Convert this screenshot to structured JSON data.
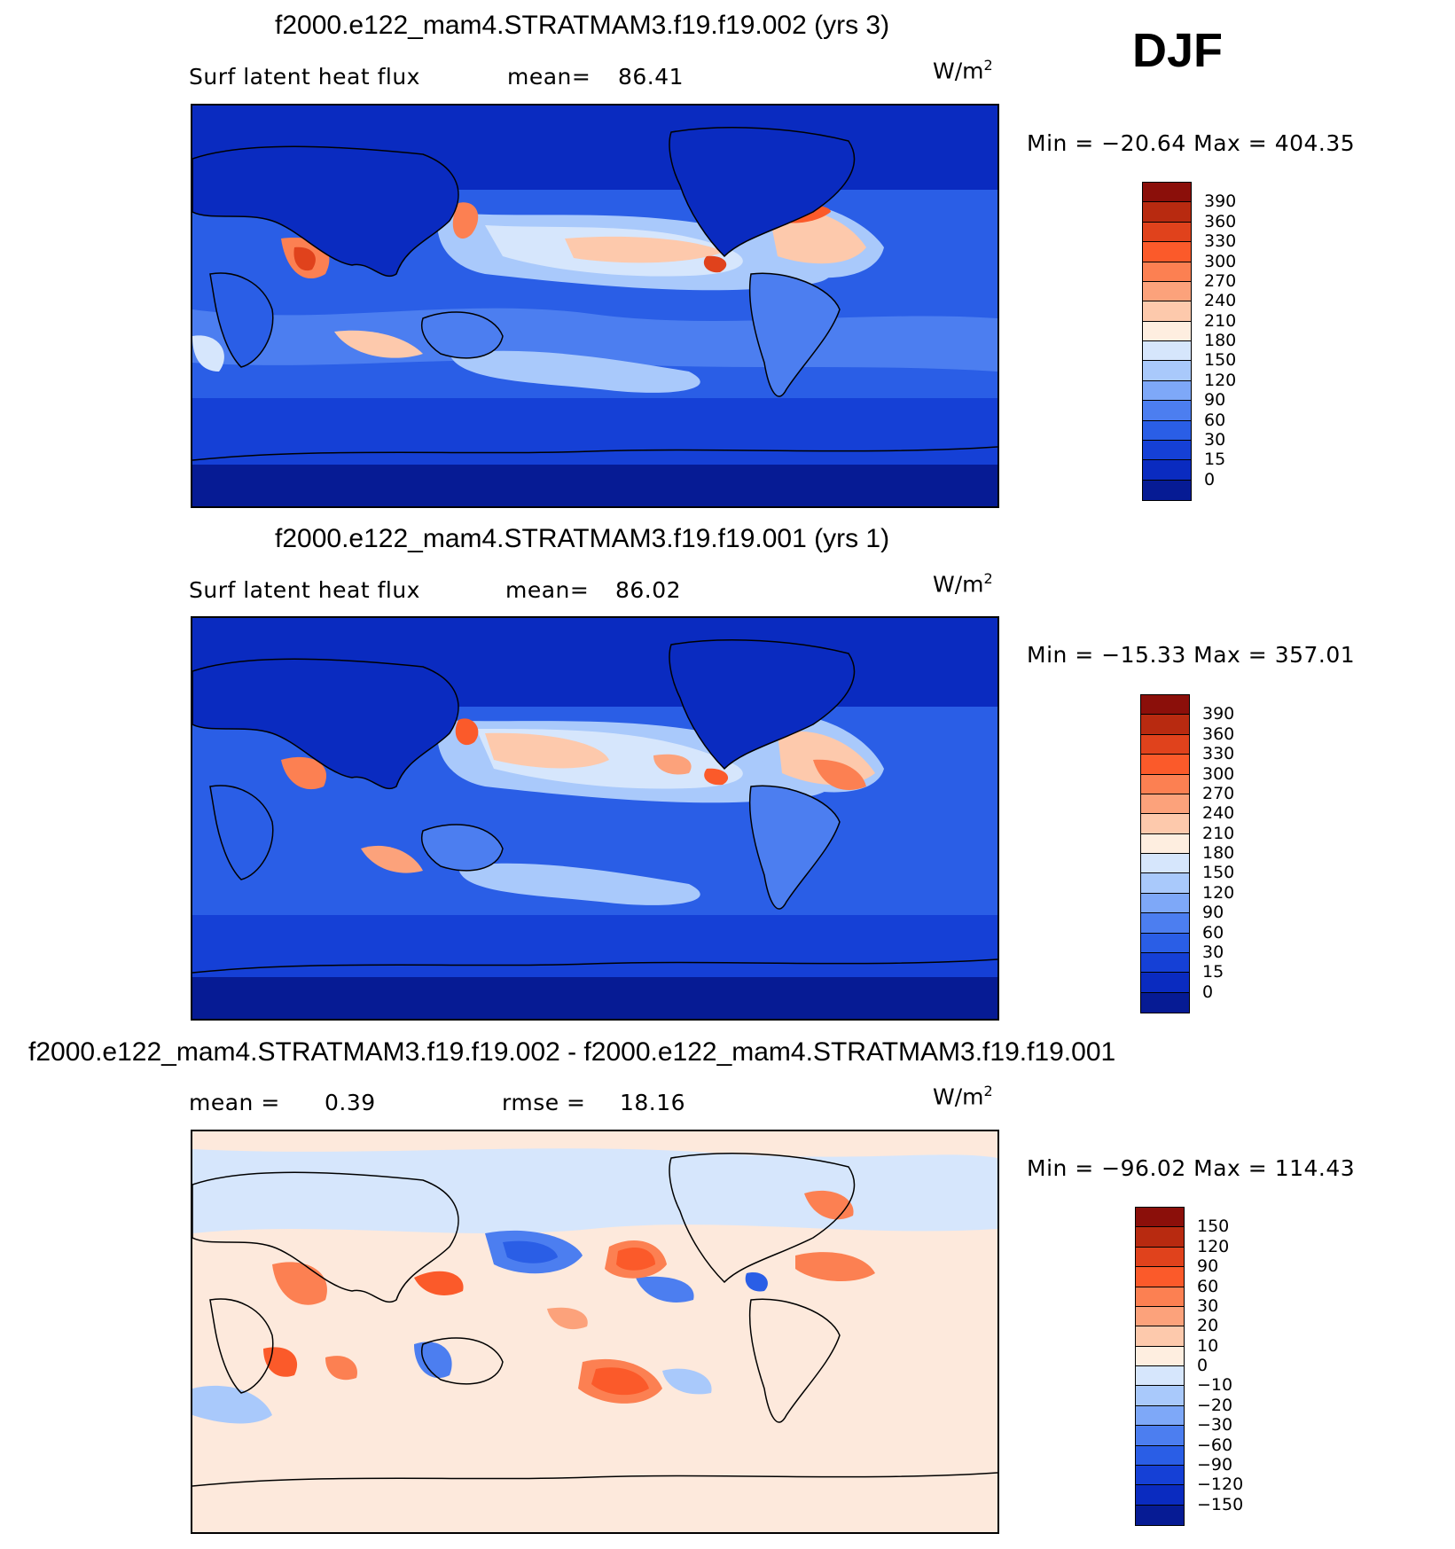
{
  "page": {
    "season": "DJF"
  },
  "panels": [
    {
      "title": "f2000.e122_mam4.STRATMAM3.f19.f19.002 (yrs 3)",
      "left_label": "Surf latent heat flux",
      "stat_label": "mean=",
      "stat_value": "86.41",
      "units": "W/m",
      "units_sup": "2",
      "minmax": "Min = −20.64  Max = 404.35",
      "colorbar": {
        "levels": [
          "390",
          "360",
          "330",
          "300",
          "270",
          "240",
          "210",
          "180",
          "150",
          "120",
          "90",
          "60",
          "30",
          "15",
          "0"
        ],
        "colors": [
          "#8b0f0a",
          "#b82a10",
          "#e0421c",
          "#fb5a2a",
          "#fc8052",
          "#fca27b",
          "#fdc9ac",
          "#feeee0",
          "#d6e6fc",
          "#a9c9fb",
          "#7ea8f8",
          "#4c7ef0",
          "#2a5ee6",
          "#1540d6",
          "#0a2bc0",
          "#061b94"
        ]
      },
      "map_bg": "#0a2bc0"
    },
    {
      "title": "f2000.e122_mam4.STRATMAM3.f19.f19.001 (yrs 1)",
      "left_label": "Surf latent heat flux",
      "stat_label": "mean=",
      "stat_value": "86.02",
      "units": "W/m",
      "units_sup": "2",
      "minmax": "Min = −15.33  Max = 357.01",
      "colorbar": {
        "levels": [
          "390",
          "360",
          "330",
          "300",
          "270",
          "240",
          "210",
          "180",
          "150",
          "120",
          "90",
          "60",
          "30",
          "15",
          "0"
        ],
        "colors": [
          "#8b0f0a",
          "#b82a10",
          "#e0421c",
          "#fb5a2a",
          "#fc8052",
          "#fca27b",
          "#fdc9ac",
          "#feeee0",
          "#d6e6fc",
          "#a9c9fb",
          "#7ea8f8",
          "#4c7ef0",
          "#2a5ee6",
          "#1540d6",
          "#0a2bc0",
          "#061b94"
        ]
      },
      "map_bg": "#0a2bc0"
    },
    {
      "title": "f2000.e122_mam4.STRATMAM3.f19.f19.002 - f2000.e122_mam4.STRATMAM3.f19.f19.001",
      "left_label": "mean =",
      "left_value": "0.39",
      "stat_label": "rmse =",
      "stat_value": "18.16",
      "units": "W/m",
      "units_sup": "2",
      "minmax": "Min = −96.02  Max = 114.43",
      "colorbar": {
        "levels": [
          "150",
          "120",
          "90",
          "60",
          "30",
          "20",
          "10",
          "0",
          "−10",
          "−20",
          "−30",
          "−60",
          "−90",
          "−120",
          "−150"
        ],
        "colors": [
          "#8b0f0a",
          "#b82a10",
          "#e0421c",
          "#fb5a2a",
          "#fc8052",
          "#fca27b",
          "#fdc9ac",
          "#feeee0",
          "#d6e6fc",
          "#a9c9fb",
          "#7ea8f8",
          "#4c7ef0",
          "#2a5ee6",
          "#1540d6",
          "#0a2bc0",
          "#061b94"
        ]
      },
      "map_bg": "#fde9dc"
    }
  ]
}
